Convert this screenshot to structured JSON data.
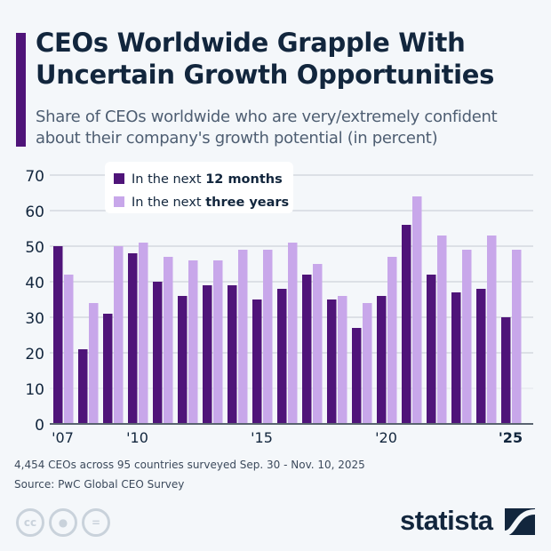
{
  "title": "CEOs Worldwide Grapple With Uncertain Growth Opportunities",
  "subtitle": "Share of CEOs worldwide who are very/extremely confident about their company's growth potential (in percent)",
  "note": "4,454 CEOs across 95 countries surveyed Sep. 30 - Nov. 10, 2025",
  "source": "Source: PwC Global CEO Survey",
  "brand": "statista",
  "chart_data": {
    "type": "bar",
    "categories": [
      "2007",
      "2008",
      "2009",
      "2010",
      "2011",
      "2012",
      "2013",
      "2014",
      "2015",
      "2016",
      "2017",
      "2018",
      "2019",
      "2020",
      "2021",
      "2022",
      "2023",
      "2024",
      "2025"
    ],
    "x_tick_labels": [
      {
        "index": 0,
        "label": "'07"
      },
      {
        "index": 3,
        "label": "'10"
      },
      {
        "index": 8,
        "label": "'15"
      },
      {
        "index": 13,
        "label": "'20"
      },
      {
        "index": 18,
        "label": "'25"
      }
    ],
    "y_ticks": [
      0,
      10,
      20,
      30,
      40,
      50,
      60,
      70
    ],
    "ylim": [
      0,
      70
    ],
    "grid": true,
    "legend_placement": "top-left",
    "series": [
      {
        "name_prefix": "In the next ",
        "name_bold": "12 months",
        "color": "#4f1479",
        "values": [
          50,
          21,
          31,
          48,
          40,
          36,
          39,
          39,
          35,
          38,
          42,
          35,
          27,
          36,
          56,
          42,
          37,
          38,
          30
        ]
      },
      {
        "name_prefix": "In the next ",
        "name_bold": "three years",
        "color": "#c8a7ea",
        "values": [
          42,
          34,
          50,
          51,
          47,
          46,
          46,
          49,
          49,
          51,
          45,
          36,
          34,
          47,
          64,
          53,
          49,
          53,
          49
        ]
      }
    ]
  }
}
